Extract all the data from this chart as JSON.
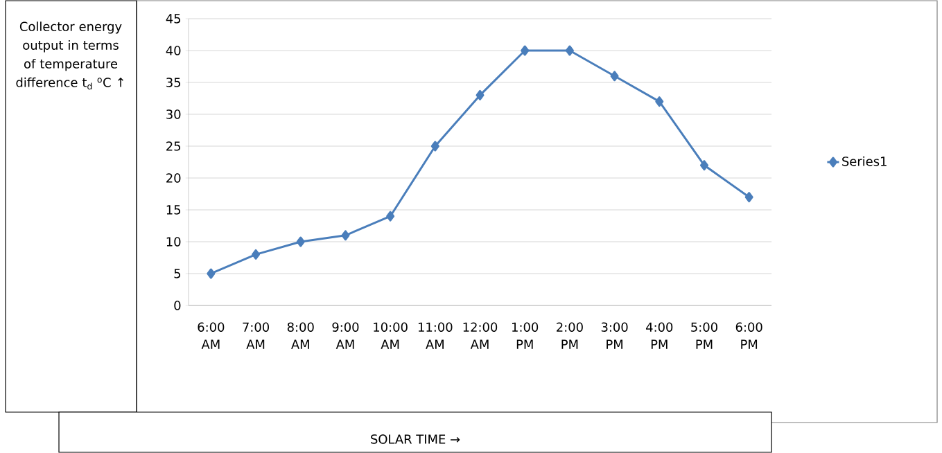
{
  "chart_data": {
    "type": "line",
    "ylabel": "Collector energy output in terms of temperature difference t$_{d}$ $^{o}$C ↑",
    "annotations": [
      "SOLAR TIME →"
    ],
    "categories": [
      "6:00 AM",
      "7:00 AM",
      "8:00 AM",
      "9:00 AM",
      "10:00 AM",
      "11:00 AM",
      "12:00 AM",
      "1:00 PM",
      "2:00 PM",
      "3:00 PM",
      "4:00 PM",
      "5:00 PM",
      "6:00 PM"
    ],
    "series": [
      {
        "name": "Series1",
        "color": "#4a7ebb",
        "values": [
          5,
          8,
          10,
          11,
          14,
          25,
          33,
          40,
          40,
          36,
          32,
          22,
          17
        ]
      }
    ],
    "ylim": [
      0,
      45
    ],
    "yticks": [
      0,
      5,
      10,
      15,
      20,
      25,
      30,
      35,
      40,
      45
    ],
    "grid": "y",
    "legend": "right",
    "marker": "diamond",
    "line_style": "solid"
  }
}
